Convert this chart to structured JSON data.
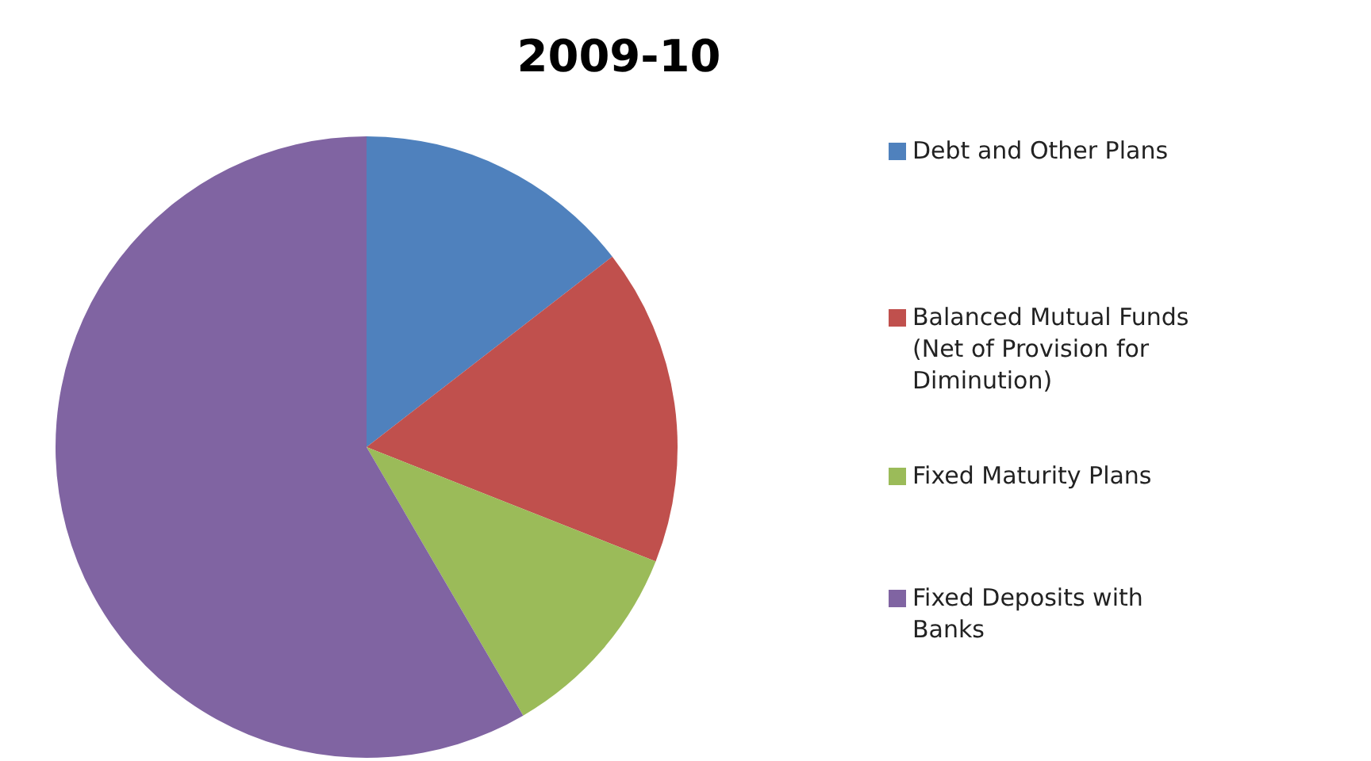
{
  "chart_data": {
    "type": "pie",
    "title": "2009-10",
    "categories": [
      "Debt and Other Plans",
      "Balanced Mutual Funds (Net of Provision for Diminution)",
      "Fixed Maturity Plans",
      "Fixed Deposits with Banks"
    ],
    "values": [
      14.5,
      16.5,
      10.6,
      58.4
    ],
    "colors": [
      "#4f81bd",
      "#c0504d",
      "#9bbb59",
      "#8064a2"
    ],
    "legend": "right"
  }
}
